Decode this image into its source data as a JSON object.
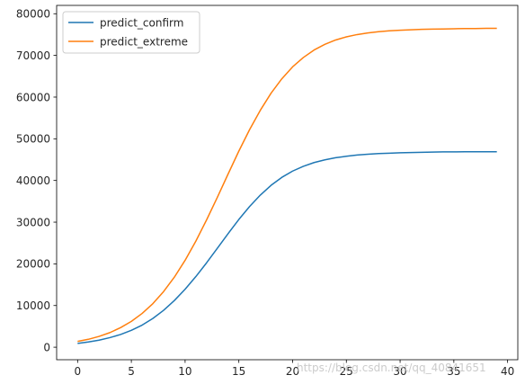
{
  "chart_data": {
    "type": "line",
    "title": "",
    "xlabel": "",
    "ylabel": "",
    "xlim": [
      -1.95,
      40.95
    ],
    "ylim": [
      -3000,
      82000
    ],
    "x_ticks": [
      0,
      5,
      10,
      15,
      20,
      25,
      30,
      35,
      40
    ],
    "y_ticks": [
      0,
      10000,
      20000,
      30000,
      40000,
      50000,
      60000,
      70000,
      80000
    ],
    "grid": false,
    "legend_position": "upper left",
    "series": [
      {
        "name": "predict_confirm",
        "color": "#1f77b4",
        "x": [
          0,
          1,
          2,
          3,
          4,
          5,
          6,
          7,
          8,
          9,
          10,
          11,
          12,
          13,
          14,
          15,
          16,
          17,
          18,
          19,
          20,
          21,
          22,
          23,
          24,
          25,
          26,
          27,
          28,
          29,
          30,
          31,
          32,
          33,
          34,
          35,
          36,
          37,
          38,
          39
        ],
        "y": [
          900,
          1250,
          1700,
          2300,
          3050,
          4050,
          5300,
          6900,
          8850,
          11200,
          13900,
          16950,
          20250,
          23750,
          27250,
          30650,
          33750,
          36500,
          38850,
          40750,
          42250,
          43400,
          44300,
          44950,
          45450,
          45800,
          46100,
          46300,
          46450,
          46550,
          46650,
          46700,
          46750,
          46800,
          46850,
          46850,
          46900,
          46900,
          46900,
          46900
        ]
      },
      {
        "name": "predict_extreme",
        "color": "#ff7f0e",
        "x": [
          0,
          1,
          2,
          3,
          4,
          5,
          6,
          7,
          8,
          9,
          10,
          11,
          12,
          13,
          14,
          15,
          16,
          17,
          18,
          19,
          20,
          21,
          22,
          23,
          24,
          25,
          26,
          27,
          28,
          29,
          30,
          31,
          32,
          33,
          34,
          35,
          36,
          37,
          38,
          39
        ],
        "y": [
          1400,
          1900,
          2600,
          3500,
          4700,
          6200,
          8100,
          10450,
          13350,
          16800,
          20850,
          25450,
          30550,
          35950,
          41550,
          47050,
          52200,
          56850,
          60950,
          64400,
          67250,
          69500,
          71300,
          72650,
          73700,
          74450,
          75000,
          75400,
          75700,
          75900,
          76050,
          76150,
          76250,
          76300,
          76350,
          76400,
          76450,
          76450,
          76500,
          76500
        ]
      }
    ]
  },
  "watermark": "https://blog.csdn.net/qq_40841651"
}
